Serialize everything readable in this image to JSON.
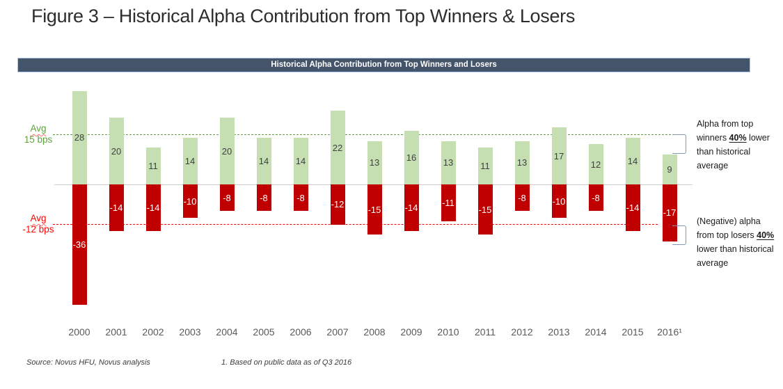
{
  "title": "Figure 3 – Historical Alpha Contribution from Top Winners & Losers",
  "chart_header": "Historical Alpha Contribution from Top Winners and Losers",
  "chart_data": {
    "type": "bar",
    "title": "Historical Alpha Contribution from Top Winners and Losers",
    "categories": [
      "2000",
      "2001",
      "2002",
      "2003",
      "2004",
      "2005",
      "2006",
      "2007",
      "2008",
      "2009",
      "2010",
      "2011",
      "2012",
      "2013",
      "2014",
      "2015",
      "2016¹"
    ],
    "series": [
      {
        "name": "top-winners-alpha",
        "color": "#C5DFB3",
        "label_color": "#3f3f3f",
        "values": [
          28,
          20,
          11,
          14,
          20,
          14,
          14,
          22,
          13,
          16,
          13,
          11,
          13,
          17,
          12,
          14,
          9
        ]
      },
      {
        "name": "top-losers-alpha",
        "color": "#C00000",
        "label_color": "#ffffff",
        "values": [
          -36,
          -14,
          -14,
          -10,
          -8,
          -8,
          -8,
          -12,
          -15,
          -14,
          -11,
          -15,
          -8,
          -10,
          -8,
          -14,
          -17
        ]
      }
    ],
    "avg_lines": [
      {
        "name": "winners-average",
        "label": [
          "Avg",
          "15 bps"
        ],
        "value": 15,
        "color": "#5FA13C"
      },
      {
        "name": "losers-average",
        "label": [
          "Avg",
          "-12 bps"
        ],
        "value": -12,
        "color": "#FF0000"
      }
    ],
    "unit": "bps",
    "ylim": [
      -40,
      30
    ],
    "grid": false,
    "legend": "none"
  },
  "annotations": {
    "winners": {
      "text": "Alpha from top winners 40% lower than historical average",
      "emphasis": "40%"
    },
    "losers": {
      "text": "(Negative) alpha from top losers 40% lower than historical average",
      "emphasis": "40%"
    }
  },
  "footer": {
    "source": "Source: Novus HFU, Novus analysis",
    "footnote": "1. Based on public data as of Q3 2016"
  },
  "colors": {
    "header_bg": "#44546A",
    "header_border": "#AEC6E8",
    "winner_bar": "#C5DFB3",
    "loser_bar": "#C00000",
    "axis_line": "#CFCFCF",
    "year_label": "#595959",
    "bracket": "#8497B0"
  }
}
